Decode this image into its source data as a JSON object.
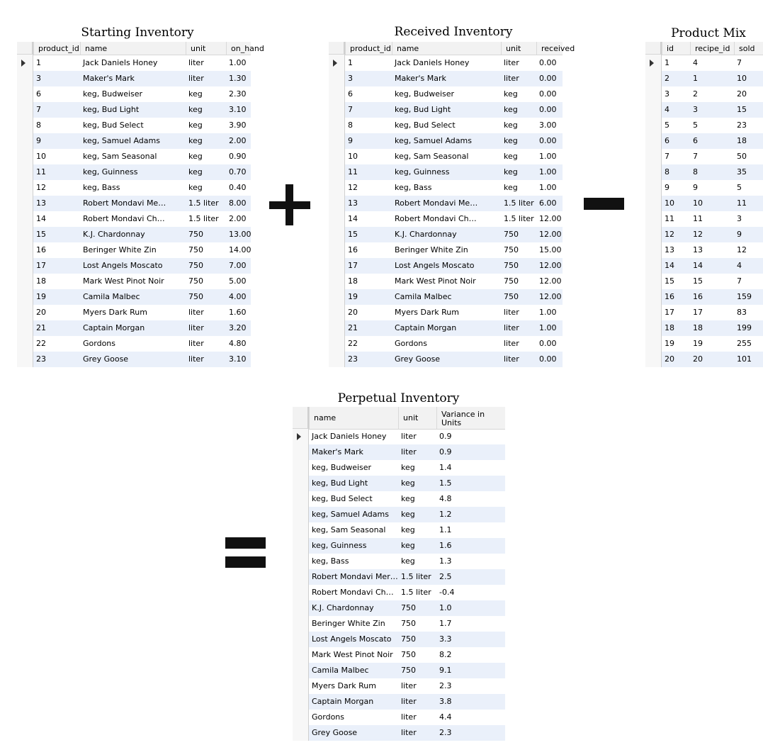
{
  "starting_inventory": {
    "title": "Starting Inventory",
    "columns": [
      "product_id",
      "name",
      "unit",
      "on_hand"
    ],
    "rows": [
      [
        "1",
        "Jack Daniels Honey",
        "liter",
        "1.00"
      ],
      [
        "3",
        "Maker's Mark",
        "liter",
        "1.30"
      ],
      [
        "6",
        "keg, Budweiser",
        "keg",
        "2.30"
      ],
      [
        "7",
        "keg, Bud Light",
        "keg",
        "3.10"
      ],
      [
        "8",
        "keg, Bud Select",
        "keg",
        "3.90"
      ],
      [
        "9",
        "keg, Samuel Adams",
        "keg",
        "2.00"
      ],
      [
        "10",
        "keg, Sam Seasonal",
        "keg",
        "0.90"
      ],
      [
        "11",
        "keg, Guinness",
        "keg",
        "0.70"
      ],
      [
        "12",
        "keg, Bass",
        "keg",
        "0.40"
      ],
      [
        "13",
        "Robert Mondavi Merlot",
        "1.5 liter",
        "8.00"
      ],
      [
        "14",
        "Robert Mondavi Char...",
        "1.5 liter",
        "2.00"
      ],
      [
        "15",
        "K.J. Chardonnay",
        "750",
        "13.00"
      ],
      [
        "16",
        "Beringer White Zin",
        "750",
        "14.00"
      ],
      [
        "17",
        "Lost Angels Moscato",
        "750",
        "7.00"
      ],
      [
        "18",
        "Mark West Pinot Noir",
        "750",
        "5.00"
      ],
      [
        "19",
        "Camila Malbec",
        "750",
        "4.00"
      ],
      [
        "20",
        "Myers Dark Rum",
        "liter",
        "1.60"
      ],
      [
        "21",
        "Captain Morgan",
        "liter",
        "3.20"
      ],
      [
        "22",
        "Gordons",
        "liter",
        "4.80"
      ],
      [
        "23",
        "Grey Goose",
        "liter",
        "3.10"
      ]
    ]
  },
  "received_inventory": {
    "title": "Received Inventory",
    "columns": [
      "product_id",
      "name",
      "unit",
      "received"
    ],
    "rows": [
      [
        "1",
        "Jack Daniels Honey",
        "liter",
        "0.00"
      ],
      [
        "3",
        "Maker's Mark",
        "liter",
        "0.00"
      ],
      [
        "6",
        "keg, Budweiser",
        "keg",
        "0.00"
      ],
      [
        "7",
        "keg, Bud Light",
        "keg",
        "0.00"
      ],
      [
        "8",
        "keg, Bud Select",
        "keg",
        "3.00"
      ],
      [
        "9",
        "keg, Samuel Adams",
        "keg",
        "0.00"
      ],
      [
        "10",
        "keg, Sam Seasonal",
        "keg",
        "1.00"
      ],
      [
        "11",
        "keg, Guinness",
        "keg",
        "1.00"
      ],
      [
        "12",
        "keg, Bass",
        "keg",
        "1.00"
      ],
      [
        "13",
        "Robert Mondavi Merlot",
        "1.5 liter",
        "6.00"
      ],
      [
        "14",
        "Robert Mondavi Char...",
        "1.5 liter",
        "12.00"
      ],
      [
        "15",
        "K.J. Chardonnay",
        "750",
        "12.00"
      ],
      [
        "16",
        "Beringer White Zin",
        "750",
        "15.00"
      ],
      [
        "17",
        "Lost Angels Moscato",
        "750",
        "12.00"
      ],
      [
        "18",
        "Mark West Pinot Noir",
        "750",
        "12.00"
      ],
      [
        "19",
        "Camila Malbec",
        "750",
        "12.00"
      ],
      [
        "20",
        "Myers Dark Rum",
        "liter",
        "1.00"
      ],
      [
        "21",
        "Captain Morgan",
        "liter",
        "1.00"
      ],
      [
        "22",
        "Gordons",
        "liter",
        "0.00"
      ],
      [
        "23",
        "Grey Goose",
        "liter",
        "0.00"
      ]
    ]
  },
  "product_mix": {
    "title": "Product Mix",
    "columns": [
      "id",
      "recipe_id",
      "sold"
    ],
    "rows": [
      [
        "1",
        "4",
        "7"
      ],
      [
        "2",
        "1",
        "10"
      ],
      [
        "3",
        "2",
        "20"
      ],
      [
        "4",
        "3",
        "15"
      ],
      [
        "5",
        "5",
        "23"
      ],
      [
        "6",
        "6",
        "18"
      ],
      [
        "7",
        "7",
        "50"
      ],
      [
        "8",
        "8",
        "35"
      ],
      [
        "9",
        "9",
        "5"
      ],
      [
        "10",
        "10",
        "11"
      ],
      [
        "11",
        "11",
        "3"
      ],
      [
        "12",
        "12",
        "9"
      ],
      [
        "13",
        "13",
        "12"
      ],
      [
        "14",
        "14",
        "4"
      ],
      [
        "15",
        "15",
        "7"
      ],
      [
        "16",
        "16",
        "159"
      ],
      [
        "17",
        "17",
        "83"
      ],
      [
        "18",
        "18",
        "199"
      ],
      [
        "19",
        "19",
        "255"
      ],
      [
        "20",
        "20",
        "101"
      ]
    ]
  },
  "perpetual_inventory": {
    "title": "Perpetual Inventory",
    "columns": [
      "name",
      "unit",
      "Variance in Units"
    ],
    "rows": [
      [
        "Jack Daniels Honey",
        "liter",
        "0.9"
      ],
      [
        "Maker's Mark",
        "liter",
        "0.9"
      ],
      [
        "keg, Budweiser",
        "keg",
        "1.4"
      ],
      [
        "keg, Bud Light",
        "keg",
        "1.5"
      ],
      [
        "keg, Bud Select",
        "keg",
        "4.8"
      ],
      [
        "keg, Samuel Adams",
        "keg",
        "1.2"
      ],
      [
        "keg, Sam Seasonal",
        "keg",
        "1.1"
      ],
      [
        "keg, Guinness",
        "keg",
        "1.6"
      ],
      [
        "keg, Bass",
        "keg",
        "1.3"
      ],
      [
        "Robert Mondavi Merlot",
        "1.5 liter",
        "2.5"
      ],
      [
        "Robert Mondavi Char...",
        "1.5 liter",
        "-0.4"
      ],
      [
        "K.J. Chardonnay",
        "750",
        "1.0"
      ],
      [
        "Beringer White Zin",
        "750",
        "1.7"
      ],
      [
        "Lost Angels Moscato",
        "750",
        "3.3"
      ],
      [
        "Mark West Pinot Noir",
        "750",
        "8.2"
      ],
      [
        "Camila Malbec",
        "750",
        "9.1"
      ],
      [
        "Myers Dark Rum",
        "liter",
        "2.3"
      ],
      [
        "Captain Morgan",
        "liter",
        "3.8"
      ],
      [
        "Gordons",
        "liter",
        "4.4"
      ],
      [
        "Grey Goose",
        "liter",
        "2.3"
      ]
    ]
  },
  "colors": {
    "row_alt": "#eaf0fa",
    "header_bg": "#f2f2f2",
    "operator": "#111111"
  },
  "icons": {
    "row_pointer": "caret-right-icon",
    "operators": [
      "plus-icon",
      "minus-icon",
      "equals-icon"
    ]
  }
}
